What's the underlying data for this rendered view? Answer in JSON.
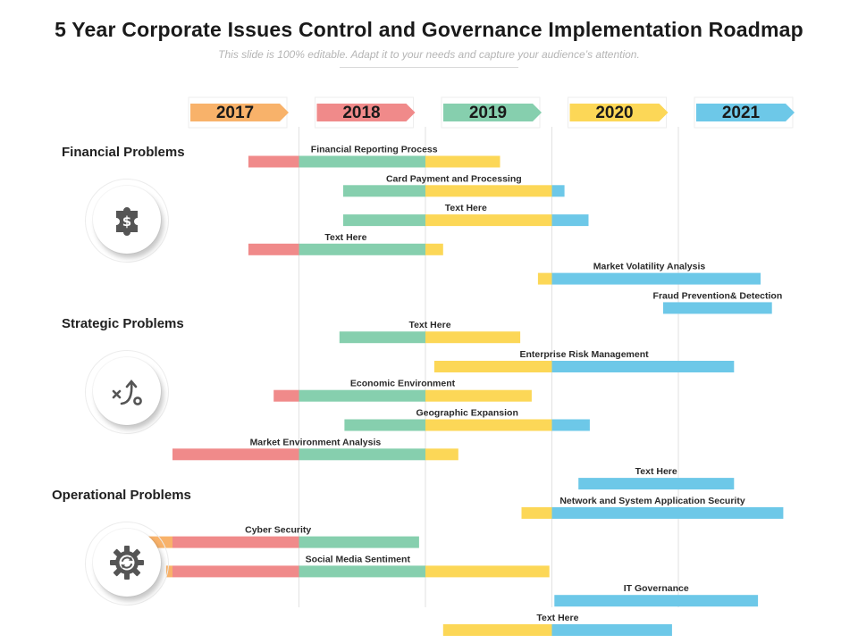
{
  "header": {
    "title": "5 Year Corporate Issues Control and Governance Implementation Roadmap",
    "subtitle": "This slide is 100% editable. Adapt it to your needs and capture your audience’s attention."
  },
  "categories": [
    {
      "label": "Financial Problems",
      "icon": "puzzle-dollar-icon"
    },
    {
      "label": "Strategic  Problems",
      "icon": "strategy-path-icon"
    },
    {
      "label": "Operational Problems",
      "icon": "gear-refresh-icon"
    }
  ],
  "colors": {
    "y2017": "#F8B26A",
    "y2018": "#F08A8A",
    "y2019": "#86CFAE",
    "y2020": "#FCD757",
    "y2021": "#6DC8E8",
    "gridline": "#e2e2e2",
    "icon": "#555555"
  },
  "chart_data": {
    "type": "gantt",
    "years": [
      "2017",
      "2018",
      "2019",
      "2020",
      "2021"
    ],
    "tasks": [
      {
        "label": "Financial Reporting Process",
        "start": 2017.6,
        "end": 2019.59
      },
      {
        "label": "Card  Payment and Processing",
        "start": 2018.35,
        "end": 2020.1
      },
      {
        "label": "Text Here",
        "start": 2018.35,
        "end": 2020.29
      },
      {
        "label": "Text Here",
        "start": 2017.6,
        "end": 2019.14
      },
      {
        "label": "Market Volatility Analysis",
        "start": 2019.89,
        "end": 2021.65
      },
      {
        "label": "Fraud Prevention& Detection",
        "start": 2020.88,
        "end": 2021.74
      },
      {
        "label": "Text Here",
        "start": 2018.32,
        "end": 2019.75
      },
      {
        "label": "Enterprise Risk Management",
        "start": 2019.07,
        "end": 2021.44
      },
      {
        "label": "Economic Environment",
        "start": 2017.8,
        "end": 2019.84
      },
      {
        "label": "Geographic Expansion",
        "start": 2018.36,
        "end": 2020.3
      },
      {
        "label": "Market Environment Analysis",
        "start": 2017.0,
        "end": 2019.26
      },
      {
        "label": "Text Here",
        "start": 2020.21,
        "end": 2021.44
      },
      {
        "label": "Network and System Application Security",
        "start": 2019.76,
        "end": 2021.83
      },
      {
        "label": "Cyber Security",
        "start": 2016.72,
        "end": 2018.95
      },
      {
        "label": "Social Media Sentiment",
        "start": 2016.95,
        "end": 2019.98
      },
      {
        "label": "IT Governance",
        "start": 2020.02,
        "end": 2021.63
      },
      {
        "label": "Text Here",
        "start": 2019.14,
        "end": 2020.95
      }
    ]
  }
}
